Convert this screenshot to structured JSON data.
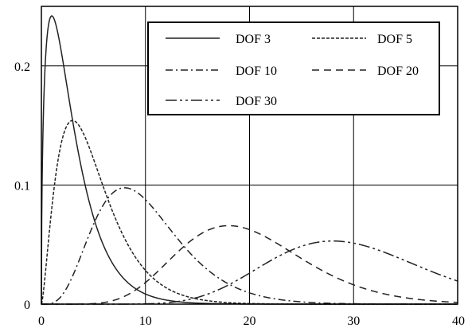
{
  "chart_data": {
    "type": "line",
    "title": "",
    "xlabel": "",
    "ylabel": "",
    "xlim": [
      0,
      40
    ],
    "ylim": [
      0,
      0.25
    ],
    "x_ticks": [
      0,
      10,
      20,
      30,
      40
    ],
    "x_tick_labels": [
      "0",
      "10",
      "20",
      "30",
      "40"
    ],
    "y_ticks": [
      0,
      0.1,
      0.2
    ],
    "y_tick_labels": [
      "0",
      "0.1",
      "0.2"
    ],
    "grid": true,
    "legend_position": "top-right",
    "series": [
      {
        "name": "DOF 3",
        "dof": 3,
        "line_style": "solid",
        "x_range": [
          0,
          40
        ],
        "peak": {
          "x": 1,
          "y": 0.242
        }
      },
      {
        "name": "DOF 5",
        "dof": 5,
        "line_style": "dotted",
        "x_range": [
          0,
          40
        ],
        "peak": {
          "x": 3,
          "y": 0.154
        }
      },
      {
        "name": "DOF 10",
        "dof": 10,
        "line_style": "dash-dot",
        "x_range": [
          0,
          40
        ],
        "peak": {
          "x": 8,
          "y": 0.098
        }
      },
      {
        "name": "DOF 20",
        "dof": 20,
        "line_style": "dashed",
        "x_range": [
          0,
          40
        ],
        "peak": {
          "x": 18,
          "y": 0.066
        }
      },
      {
        "name": "DOF 30",
        "dof": 30,
        "line_style": "dash-dot-dot",
        "x_range": [
          0,
          40
        ],
        "peak": {
          "x": 28,
          "y": 0.053
        }
      }
    ]
  }
}
